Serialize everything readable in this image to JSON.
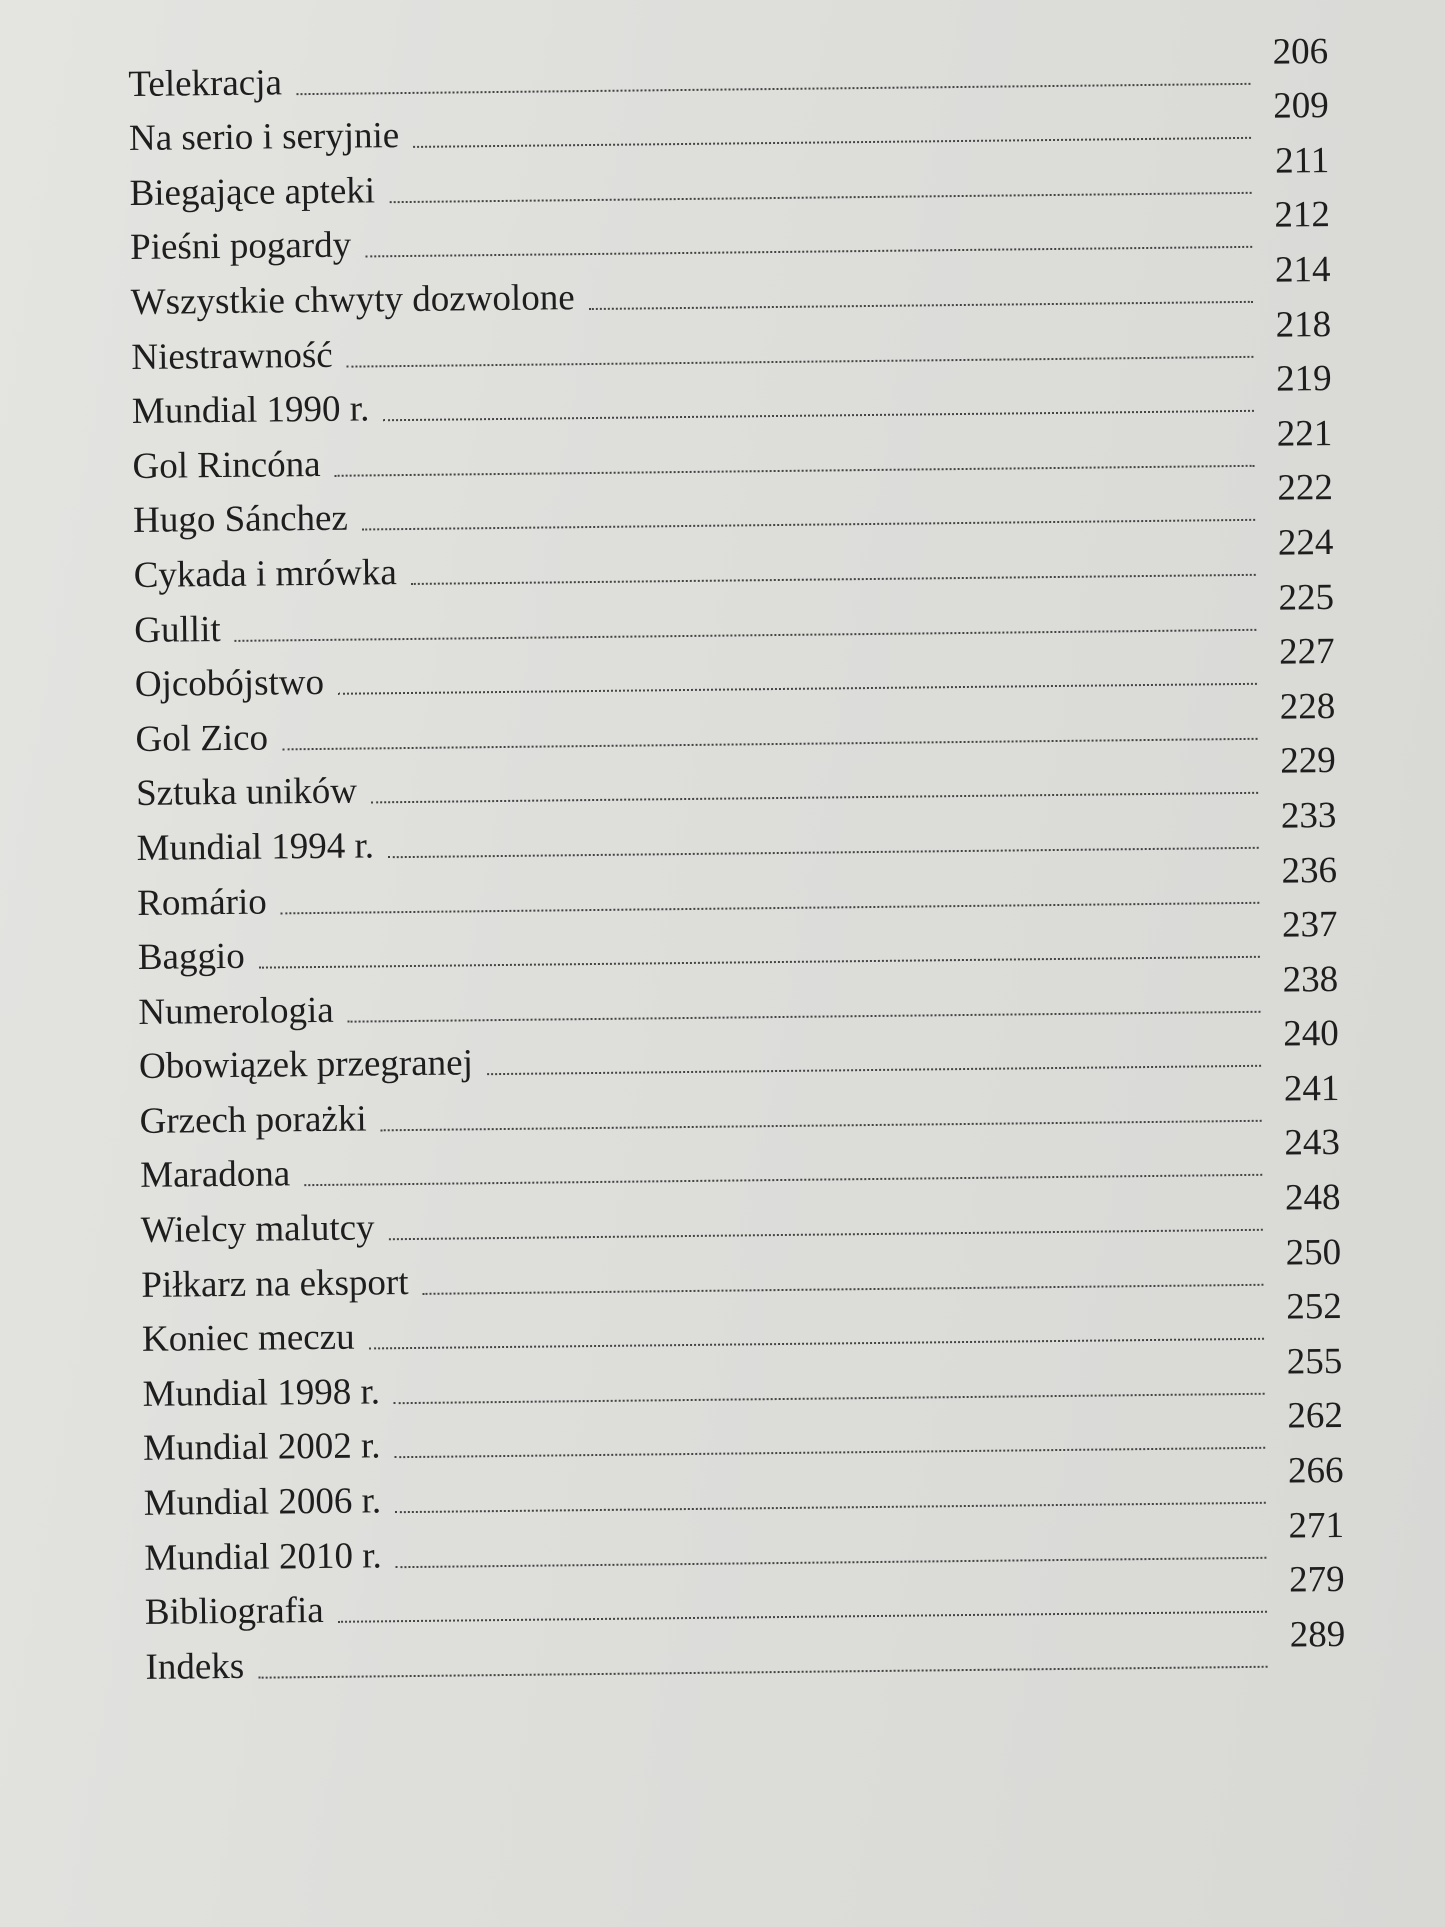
{
  "toc": {
    "entries": [
      {
        "title": "Telekracja",
        "page": "206"
      },
      {
        "title": "Na serio i seryjnie",
        "page": "209"
      },
      {
        "title": "Biegające apteki",
        "page": "211"
      },
      {
        "title": "Pieśni pogardy",
        "page": "212"
      },
      {
        "title": "Wszystkie chwyty dozwolone",
        "page": "214"
      },
      {
        "title": "Niestrawność",
        "page": "218"
      },
      {
        "title": "Mundial 1990 r.",
        "page": "219"
      },
      {
        "title": "Gol Rincóna",
        "page": "221"
      },
      {
        "title": "Hugo Sánchez",
        "page": "222"
      },
      {
        "title": "Cykada i mrówka",
        "page": "224"
      },
      {
        "title": "Gullit",
        "page": "225"
      },
      {
        "title": "Ojcobójstwo",
        "page": "227"
      },
      {
        "title": "Gol Zico",
        "page": "228"
      },
      {
        "title": "Sztuka uników",
        "page": "229"
      },
      {
        "title": "Mundial 1994 r.",
        "page": "233"
      },
      {
        "title": "Romário",
        "page": "236"
      },
      {
        "title": "Baggio",
        "page": "237"
      },
      {
        "title": "Numerologia",
        "page": "238"
      },
      {
        "title": "Obowiązek przegranej",
        "page": "240"
      },
      {
        "title": "Grzech porażki",
        "page": "241"
      },
      {
        "title": "Maradona",
        "page": "243"
      },
      {
        "title": "Wielcy malutcy",
        "page": "248"
      },
      {
        "title": "Piłkarz na eksport",
        "page": "250"
      },
      {
        "title": "Koniec meczu",
        "page": "252"
      },
      {
        "title": "Mundial 1998 r.",
        "page": "255"
      },
      {
        "title": "Mundial 2002 r.",
        "page": "262"
      },
      {
        "title": "Mundial 2006 r.",
        "page": "266"
      },
      {
        "title": "Mundial 2010 r.",
        "page": "271"
      },
      {
        "title": "Bibliografia",
        "page": "279"
      },
      {
        "title": "Indeks",
        "page": "289"
      }
    ]
  }
}
